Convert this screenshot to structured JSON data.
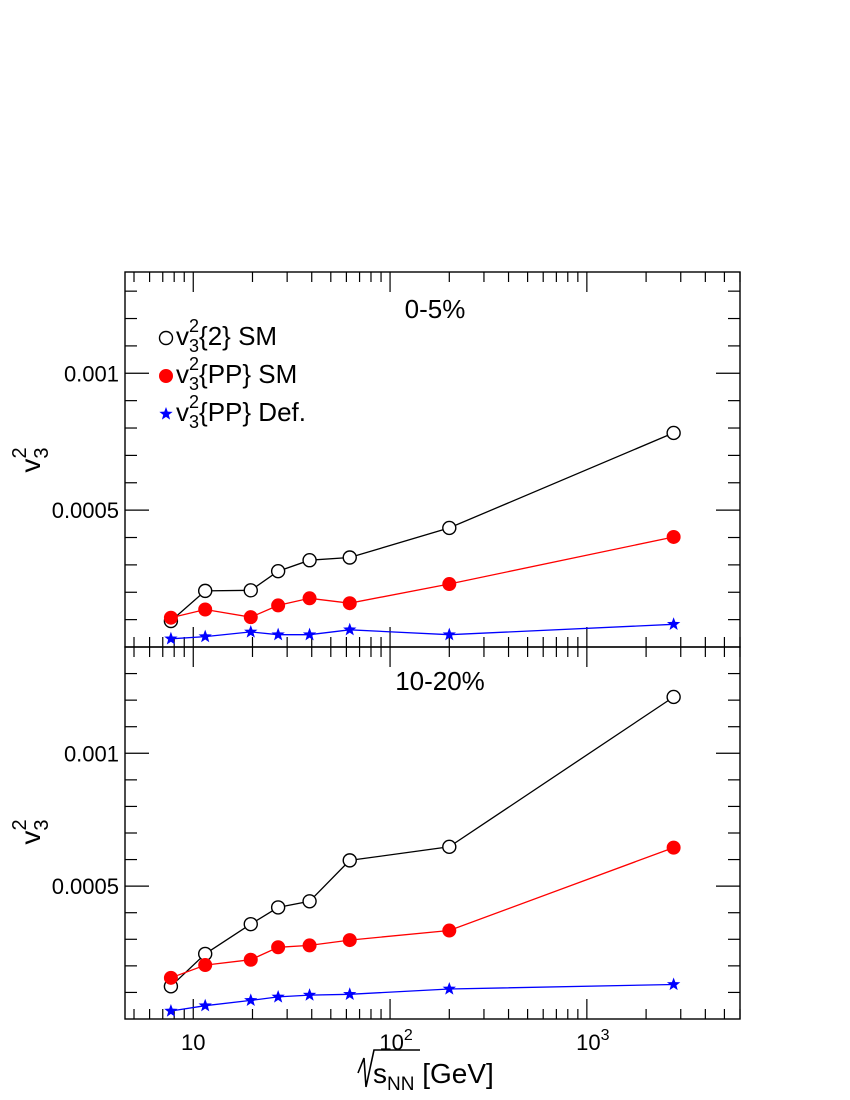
{
  "chart_data": {
    "type": "line",
    "x_axis": {
      "label_prefix": "s",
      "label_subscript": "NN",
      "label_suffix": " [GeV]",
      "scale": "log",
      "xlim": [
        4.5,
        6000
      ],
      "tick_labels": [
        {
          "value": 10,
          "text": "10",
          "mantissa": "10",
          "exponent": ""
        },
        {
          "value": 100,
          "text": "10^2",
          "mantissa": "10",
          "exponent": "2"
        },
        {
          "value": 1000,
          "text": "10^3",
          "mantissa": "10",
          "exponent": "3"
        }
      ]
    },
    "y_axis_label": {
      "main": "v",
      "sub": "3",
      "sup": "2"
    },
    "legend": [
      {
        "series": "v3_2_SM",
        "prefix": "v",
        "sub": "3",
        "sup": "2",
        "rest": "{2} SM",
        "marker": "open-circle",
        "color": "#000000"
      },
      {
        "series": "v3_PP_SM",
        "prefix": "v",
        "sub": "3",
        "sup": "2",
        "rest": "{PP} SM",
        "marker": "filled-circle",
        "color": "#ff0000"
      },
      {
        "series": "v3_PP_Def",
        "prefix": "v",
        "sub": "3",
        "sup": "2",
        "rest": "{PP} Def.",
        "marker": "star",
        "color": "#0000ff"
      }
    ],
    "x": [
      7.7,
      11.5,
      19.6,
      27,
      39,
      62.4,
      200,
      2760
    ],
    "panels": [
      {
        "title": "0-5%",
        "ylim": [
          0.0,
          0.00137
        ],
        "y_ticks": [
          {
            "value": 0.001,
            "text": "0.001"
          },
          {
            "value": 0.0005,
            "text": "0.0005"
          }
        ],
        "series": [
          {
            "id": "v3_2_SM",
            "name": "v3^2{2} SM",
            "color": "#000000",
            "marker": "open-circle",
            "values": [
              9.5e-05,
              0.000205,
              0.000207,
              0.000277,
              0.000317,
              0.000327,
              0.000435,
              0.000782
            ]
          },
          {
            "id": "v3_PP_SM",
            "name": "v3^2{PP} SM",
            "color": "#ff0000",
            "marker": "filled-circle",
            "values": [
              0.000107,
              0.000137,
              0.000109,
              0.000152,
              0.000178,
              0.00016,
              0.00023,
              0.000402
            ]
          },
          {
            "id": "v3_PP_Def",
            "name": "v3^2{PP} Def.",
            "color": "#0000ff",
            "marker": "star",
            "values": [
              3e-05,
              3.8e-05,
              5.5e-05,
              4.5e-05,
              4.5e-05,
              6.3e-05,
              4.5e-05,
              8.3e-05
            ]
          }
        ]
      },
      {
        "title": "10-20%",
        "ylim": [
          0.0,
          0.0014
        ],
        "y_ticks": [
          {
            "value": 0.001,
            "text": "0.001"
          },
          {
            "value": 0.0005,
            "text": "0.0005"
          }
        ],
        "series": [
          {
            "id": "v3_2_SM",
            "name": "v3^2{2} SM",
            "color": "#000000",
            "marker": "open-circle",
            "values": [
              0.000123,
              0.000245,
              0.000357,
              0.00042,
              0.000443,
              0.000597,
              0.000648,
              0.001212
            ]
          },
          {
            "id": "v3_PP_SM",
            "name": "v3^2{PP} SM",
            "color": "#ff0000",
            "marker": "filled-circle",
            "values": [
              0.000155,
              0.000203,
              0.000223,
              0.00027,
              0.000277,
              0.000297,
              0.000333,
              0.000645
            ]
          },
          {
            "id": "v3_PP_Def",
            "name": "v3^2{PP} Def.",
            "color": "#0000ff",
            "marker": "star",
            "values": [
              3e-05,
              5e-05,
              7e-05,
              8.3e-05,
              9e-05,
              9.3e-05,
              0.000113,
              0.00013
            ]
          }
        ]
      }
    ]
  }
}
